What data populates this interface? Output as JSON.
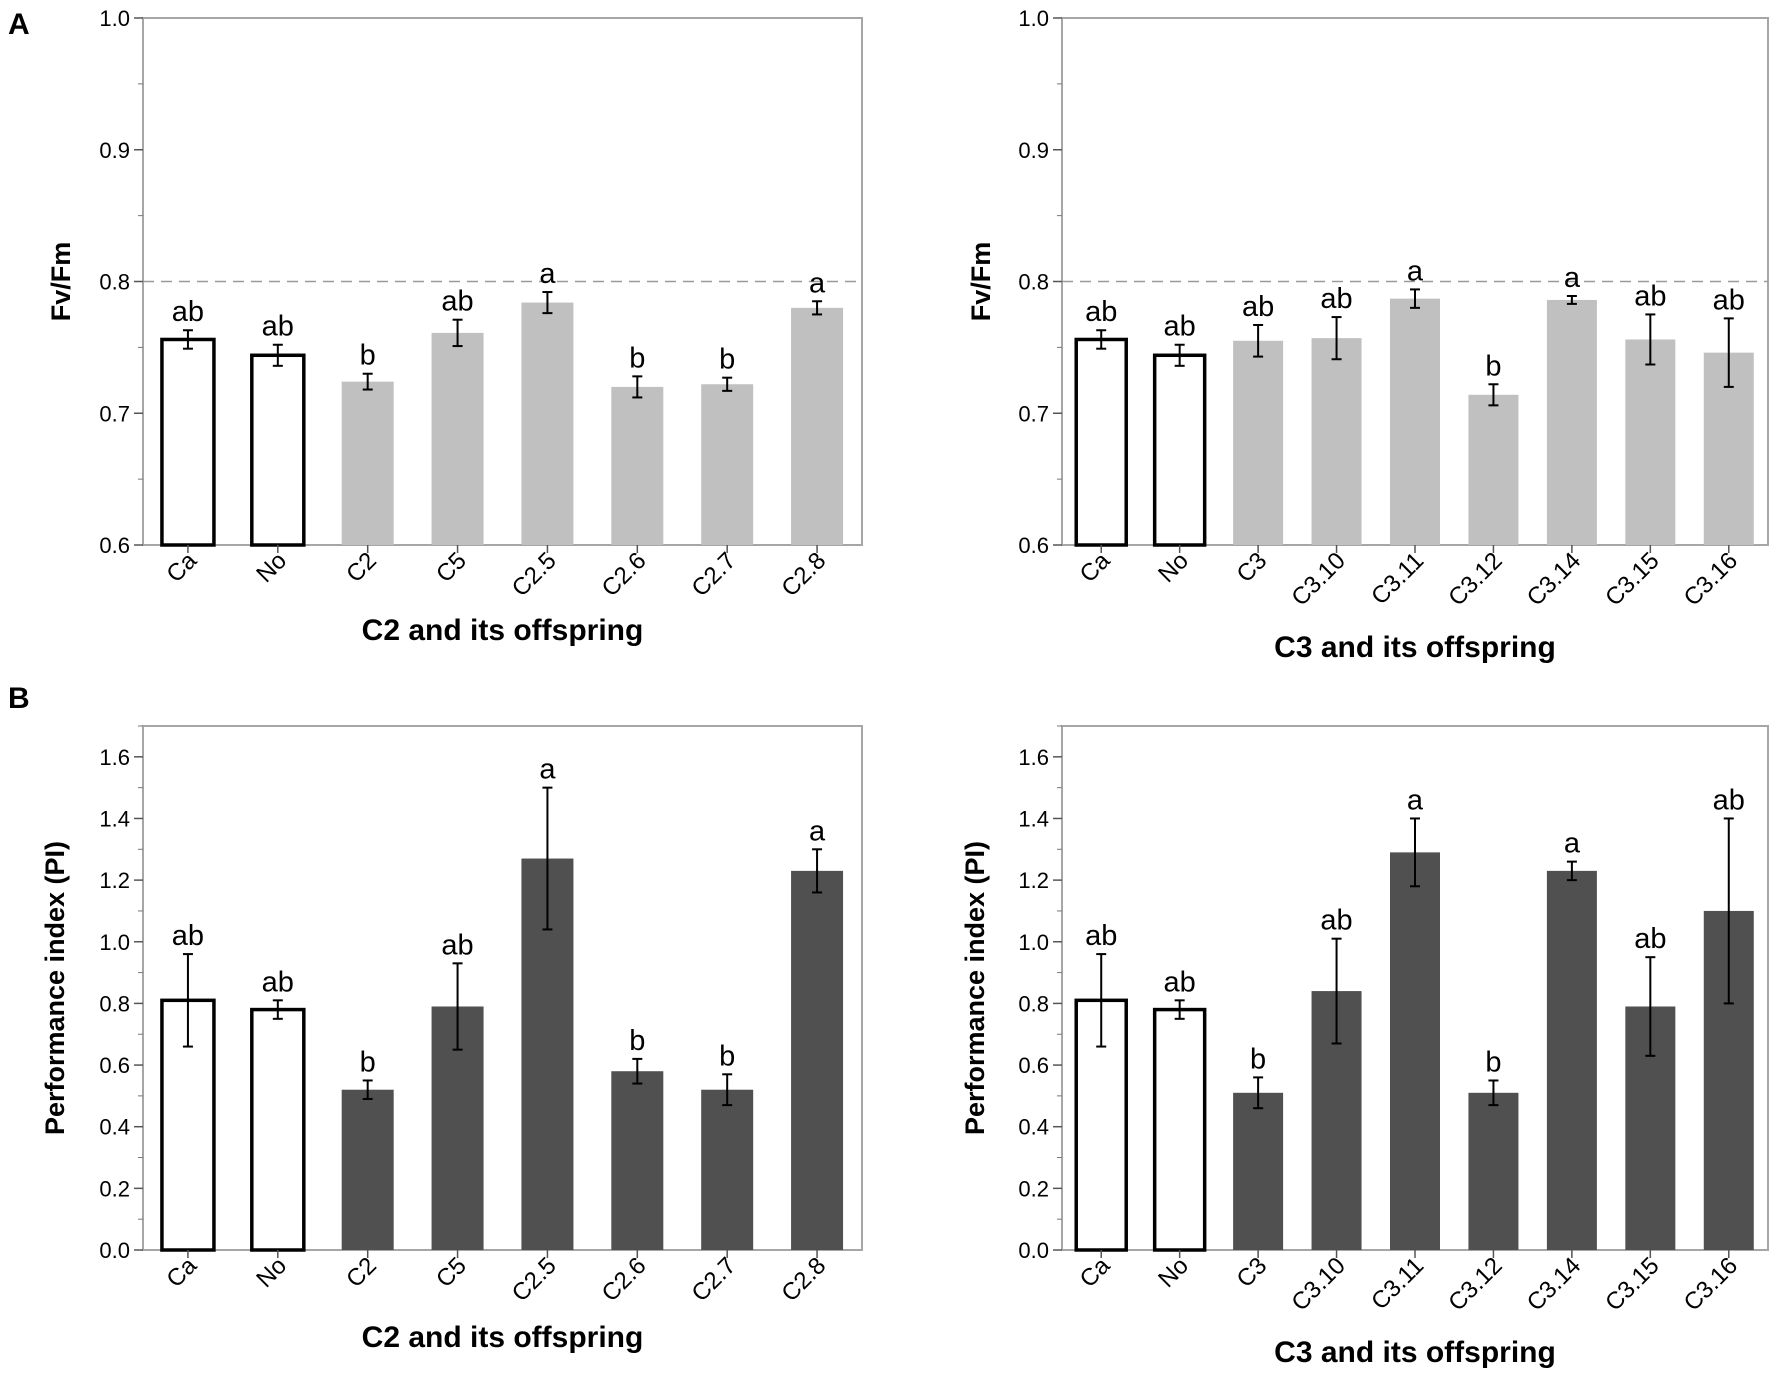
{
  "panel_labels": [
    "A",
    "B"
  ],
  "colors": {
    "control_fill": "#ffffff",
    "control_stroke": "#000000",
    "fvfm_fill": "#c0c0c0",
    "pi_fill": "#505050",
    "axis_frame": "#a6a6a6",
    "reference_line": "#9a9a9a"
  },
  "chart_data": [
    {
      "id": "A-left",
      "panel": "A",
      "type": "bar",
      "ylabel": "Fv/Fm",
      "xlabel": "C2 and its offspring",
      "ylim": [
        0.6,
        1.0
      ],
      "yticks": [
        "0.6",
        "0.7",
        "0.8",
        "0.9",
        "1.0"
      ],
      "reference_line": 0.8,
      "categories": [
        "Ca",
        "No",
        "C2",
        "C5",
        "C2.5",
        "C2.6",
        "C2.7",
        "C2.8"
      ],
      "values": [
        0.756,
        0.744,
        0.724,
        0.761,
        0.784,
        0.72,
        0.722,
        0.78
      ],
      "errors": [
        0.007,
        0.008,
        0.006,
        0.01,
        0.008,
        0.008,
        0.005,
        0.005
      ],
      "significance": [
        "ab",
        "ab",
        "b",
        "ab",
        "a",
        "b",
        "b",
        "a"
      ],
      "controls": [
        "Ca",
        "No"
      ]
    },
    {
      "id": "A-right",
      "panel": "A",
      "type": "bar",
      "ylabel": "Fv/Fm",
      "xlabel": "C3 and its offspring",
      "ylim": [
        0.6,
        1.0
      ],
      "yticks": [
        "0.6",
        "0.7",
        "0.8",
        "0.9",
        "1.0"
      ],
      "reference_line": 0.8,
      "categories": [
        "Ca",
        "No",
        "C3",
        "C3.10",
        "C3.11",
        "C3.12",
        "C3.14",
        "C3.15",
        "C3.16"
      ],
      "values": [
        0.756,
        0.744,
        0.755,
        0.757,
        0.787,
        0.714,
        0.786,
        0.756,
        0.746
      ],
      "errors": [
        0.007,
        0.008,
        0.012,
        0.016,
        0.007,
        0.008,
        0.003,
        0.019,
        0.026
      ],
      "significance": [
        "ab",
        "ab",
        "ab",
        "ab",
        "a",
        "b",
        "a",
        "ab",
        "ab"
      ],
      "controls": [
        "Ca",
        "No"
      ]
    },
    {
      "id": "B-left",
      "panel": "B",
      "type": "bar",
      "ylabel": "Performance index (PI)",
      "xlabel": "C2 and its offspring",
      "ylim": [
        0.0,
        1.7
      ],
      "yticks": [
        "0.0",
        "0.2",
        "0.4",
        "0.6",
        "0.8",
        "1.0",
        "1.2",
        "1.4",
        "1.6"
      ],
      "categories": [
        "Ca",
        "No",
        "C2",
        "C5",
        "C2.5",
        "C2.6",
        "C2.7",
        "C2.8"
      ],
      "values": [
        0.81,
        0.78,
        0.52,
        0.79,
        1.27,
        0.58,
        0.52,
        1.23
      ],
      "errors": [
        0.15,
        0.03,
        0.03,
        0.14,
        0.23,
        0.04,
        0.05,
        0.07
      ],
      "significance": [
        "ab",
        "ab",
        "b",
        "ab",
        "a",
        "b",
        "b",
        "a"
      ],
      "controls": [
        "Ca",
        "No"
      ]
    },
    {
      "id": "B-right",
      "panel": "B",
      "type": "bar",
      "ylabel": "Performance index (PI)",
      "xlabel": "C3 and its offspring",
      "ylim": [
        0.0,
        1.7
      ],
      "yticks": [
        "0.0",
        "0.2",
        "0.4",
        "0.6",
        "0.8",
        "1.0",
        "1.2",
        "1.4",
        "1.6"
      ],
      "categories": [
        "Ca",
        "No",
        "C3",
        "C3.10",
        "C3.11",
        "C3.12",
        "C3.14",
        "C3.15",
        "C3.16"
      ],
      "values": [
        0.81,
        0.78,
        0.51,
        0.84,
        1.29,
        0.51,
        1.23,
        0.79,
        1.1
      ],
      "errors": [
        0.15,
        0.03,
        0.05,
        0.17,
        0.11,
        0.04,
        0.03,
        0.16,
        0.3
      ],
      "significance": [
        "ab",
        "ab",
        "b",
        "ab",
        "a",
        "b",
        "a",
        "ab",
        "ab"
      ],
      "controls": [
        "Ca",
        "No"
      ]
    }
  ]
}
